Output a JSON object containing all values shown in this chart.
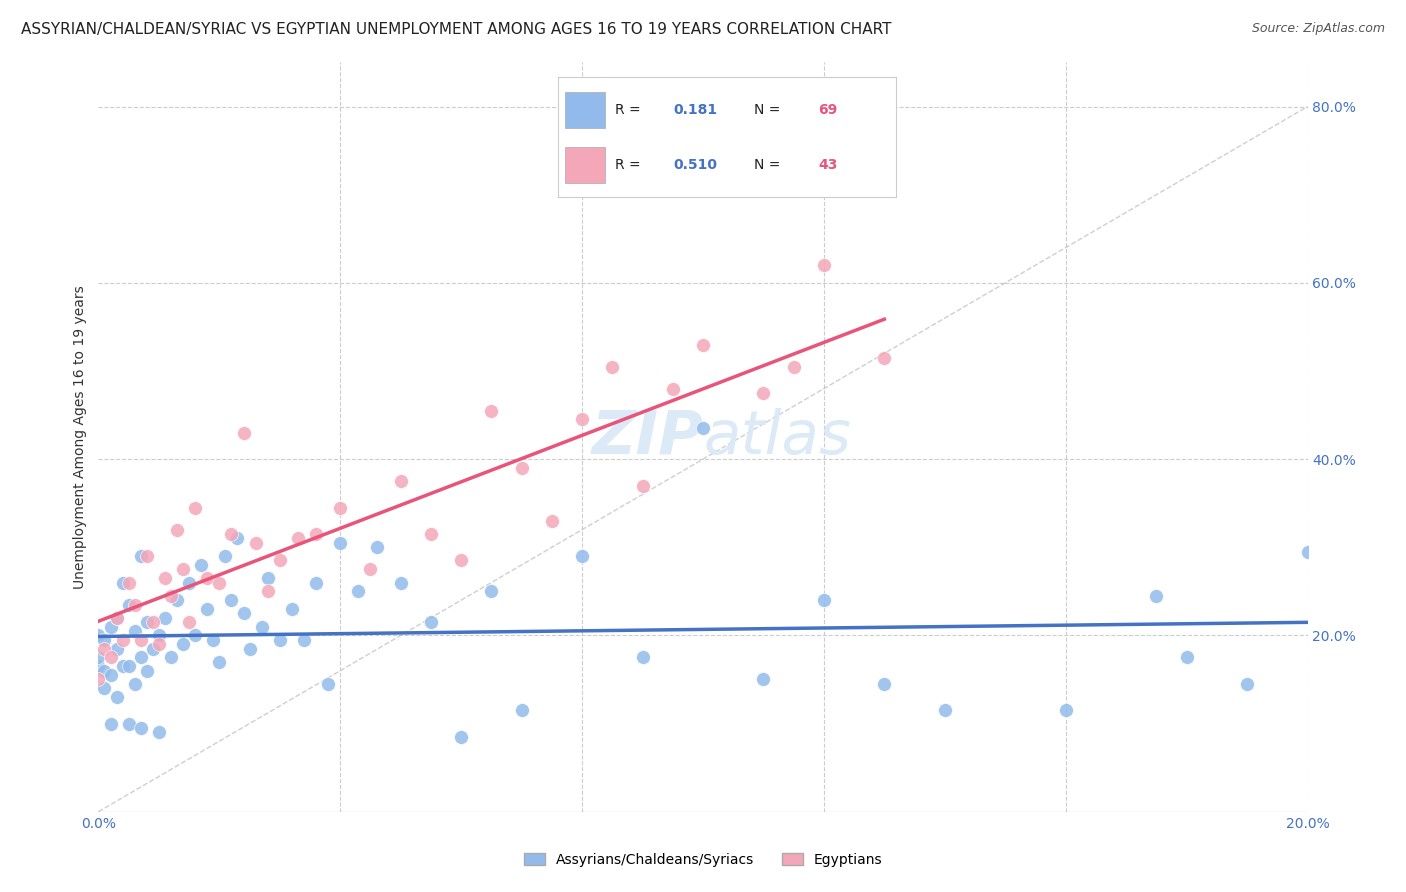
{
  "title": "ASSYRIAN/CHALDEAN/SYRIAC VS EGYPTIAN UNEMPLOYMENT AMONG AGES 16 TO 19 YEARS CORRELATION CHART",
  "source": "Source: ZipAtlas.com",
  "ylabel": "Unemployment Among Ages 16 to 19 years",
  "xlim": [
    0.0,
    0.2
  ],
  "ylim": [
    0.0,
    0.85
  ],
  "r_assyrian": 0.181,
  "n_assyrian": 69,
  "r_egyptian": 0.51,
  "n_egyptian": 43,
  "color_assyrian": "#92BBEC",
  "color_egyptian": "#F4A7B9",
  "line_color_assyrian": "#4472C4",
  "line_color_egyptian": "#E8547A",
  "background_color": "#FFFFFF",
  "grid_color": "#CCCCCC",
  "assyrian_x": [
    0.0,
    0.0,
    0.0,
    0.001,
    0.001,
    0.001,
    0.002,
    0.002,
    0.002,
    0.003,
    0.003,
    0.003,
    0.004,
    0.004,
    0.005,
    0.005,
    0.005,
    0.006,
    0.006,
    0.007,
    0.007,
    0.007,
    0.008,
    0.008,
    0.009,
    0.01,
    0.01,
    0.011,
    0.012,
    0.013,
    0.014,
    0.015,
    0.016,
    0.017,
    0.018,
    0.019,
    0.02,
    0.021,
    0.022,
    0.023,
    0.024,
    0.025,
    0.027,
    0.028,
    0.03,
    0.032,
    0.034,
    0.036,
    0.038,
    0.04,
    0.043,
    0.046,
    0.05,
    0.055,
    0.06,
    0.065,
    0.07,
    0.08,
    0.09,
    0.1,
    0.11,
    0.12,
    0.13,
    0.14,
    0.16,
    0.175,
    0.18,
    0.19,
    0.2
  ],
  "assyrian_y": [
    0.165,
    0.175,
    0.2,
    0.14,
    0.16,
    0.195,
    0.1,
    0.155,
    0.21,
    0.13,
    0.185,
    0.22,
    0.165,
    0.26,
    0.1,
    0.165,
    0.235,
    0.145,
    0.205,
    0.095,
    0.175,
    0.29,
    0.16,
    0.215,
    0.185,
    0.09,
    0.2,
    0.22,
    0.175,
    0.24,
    0.19,
    0.26,
    0.2,
    0.28,
    0.23,
    0.195,
    0.17,
    0.29,
    0.24,
    0.31,
    0.225,
    0.185,
    0.21,
    0.265,
    0.195,
    0.23,
    0.195,
    0.26,
    0.145,
    0.305,
    0.25,
    0.3,
    0.26,
    0.215,
    0.085,
    0.25,
    0.115,
    0.29,
    0.175,
    0.435,
    0.15,
    0.24,
    0.145,
    0.115,
    0.115,
    0.245,
    0.175,
    0.145,
    0.295
  ],
  "egyptian_x": [
    0.0,
    0.001,
    0.002,
    0.003,
    0.004,
    0.005,
    0.006,
    0.007,
    0.008,
    0.009,
    0.01,
    0.011,
    0.012,
    0.013,
    0.014,
    0.015,
    0.016,
    0.018,
    0.02,
    0.022,
    0.024,
    0.026,
    0.028,
    0.03,
    0.033,
    0.036,
    0.04,
    0.045,
    0.05,
    0.055,
    0.06,
    0.065,
    0.07,
    0.075,
    0.08,
    0.085,
    0.09,
    0.095,
    0.1,
    0.11,
    0.115,
    0.12,
    0.13
  ],
  "egyptian_y": [
    0.15,
    0.185,
    0.175,
    0.22,
    0.195,
    0.26,
    0.235,
    0.195,
    0.29,
    0.215,
    0.19,
    0.265,
    0.245,
    0.32,
    0.275,
    0.215,
    0.345,
    0.265,
    0.26,
    0.315,
    0.43,
    0.305,
    0.25,
    0.285,
    0.31,
    0.315,
    0.345,
    0.275,
    0.375,
    0.315,
    0.285,
    0.455,
    0.39,
    0.33,
    0.445,
    0.505,
    0.37,
    0.48,
    0.53,
    0.475,
    0.505,
    0.62,
    0.515
  ]
}
